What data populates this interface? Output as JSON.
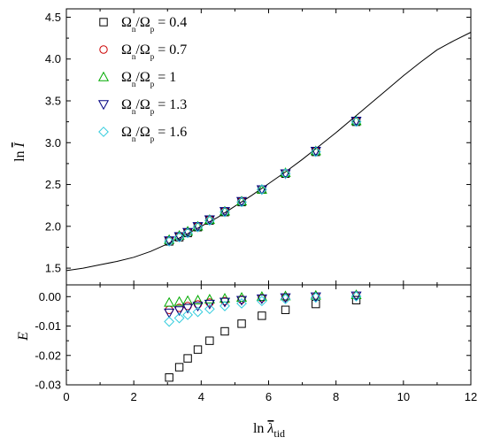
{
  "chart_data": [
    {
      "type": "scatter",
      "panel": "top",
      "ylabel": "ln Ī",
      "ylabel_main": "ln ",
      "ylabel_sym": "I",
      "xlim": [
        0,
        12
      ],
      "ylim": [
        1.3,
        4.6
      ],
      "x_ticks": [
        0,
        2,
        4,
        6,
        8,
        10,
        12
      ],
      "y_ticks": [
        1.5,
        2.0,
        2.5,
        3.0,
        3.5,
        4.0,
        4.5
      ],
      "y_tick_labels": [
        "1.5",
        "2.0",
        "2.5",
        "3.0",
        "3.5",
        "4.0",
        "4.5"
      ],
      "legend_position": "top-left",
      "grid": false,
      "fit_curve": {
        "x": [
          0,
          0.5,
          1,
          1.5,
          2,
          2.5,
          3,
          3.5,
          4,
          4.5,
          5,
          5.5,
          6,
          6.5,
          7,
          7.5,
          8,
          8.5,
          9,
          9.5,
          10,
          10.5,
          11,
          11.5,
          12
        ],
        "y": [
          1.47,
          1.5,
          1.54,
          1.58,
          1.63,
          1.7,
          1.79,
          1.89,
          2.0,
          2.11,
          2.24,
          2.37,
          2.51,
          2.65,
          2.8,
          2.96,
          3.12,
          3.29,
          3.46,
          3.63,
          3.8,
          3.96,
          4.11,
          4.22,
          4.32
        ]
      },
      "x": [
        3.05,
        3.35,
        3.6,
        3.9,
        4.25,
        4.7,
        5.2,
        5.8,
        6.5,
        7.4,
        8.6
      ],
      "series": [
        {
          "name": "Ωn/Ωp = 0.4",
          "label": [
            "Ω",
            "n",
            "/Ω",
            "p",
            " = 0.4"
          ],
          "marker": "square",
          "color": "#000000",
          "values": [
            1.82,
            1.87,
            1.92,
            1.99,
            2.07,
            2.17,
            2.29,
            2.44,
            2.63,
            2.89,
            3.25
          ]
        },
        {
          "name": "Ωn/Ωp = 0.7",
          "label": [
            "Ω",
            "n",
            "/Ω",
            "p",
            " = 0.7"
          ],
          "marker": "circle",
          "color": "#cc0000",
          "values": [
            1.83,
            1.88,
            1.93,
            2.0,
            2.08,
            2.18,
            2.3,
            2.44,
            2.63,
            2.9,
            3.26
          ]
        },
        {
          "name": "Ωn/Ωp = 1",
          "label": [
            "Ω",
            "n",
            "/Ω",
            "p",
            " = 1"
          ],
          "marker": "triangle-up",
          "color": "#00aa00",
          "values": [
            1.84,
            1.89,
            1.94,
            2.0,
            2.08,
            2.18,
            2.3,
            2.44,
            2.64,
            2.9,
            3.26
          ]
        },
        {
          "name": "Ωn/Ωp = 1.3",
          "label": [
            "Ω",
            "n",
            "/Ω",
            "p",
            " = 1.3"
          ],
          "marker": "triangle-down",
          "color": "#000080",
          "values": [
            1.83,
            1.88,
            1.93,
            2.0,
            2.08,
            2.18,
            2.3,
            2.44,
            2.63,
            2.9,
            3.26
          ]
        },
        {
          "name": "Ωn/Ωp = 1.6",
          "label": [
            "Ω",
            "n",
            "/Ω",
            "p",
            " = 1.6"
          ],
          "marker": "diamond",
          "color": "#33ccdd",
          "values": [
            1.82,
            1.87,
            1.92,
            1.99,
            2.07,
            2.17,
            2.29,
            2.44,
            2.63,
            2.89,
            3.25
          ]
        }
      ]
    },
    {
      "type": "scatter",
      "panel": "bottom",
      "xlabel": "ln λ̄tid",
      "xlabel_main": "ln ",
      "xlabel_sym": "λ",
      "xlabel_sub": "tid",
      "ylabel": "E",
      "xlim": [
        0,
        12
      ],
      "ylim": [
        -0.03,
        0.004
      ],
      "x_ticks": [
        0,
        2,
        4,
        6,
        8,
        10,
        12
      ],
      "x_tick_labels": [
        "0",
        "2",
        "4",
        "6",
        "8",
        "10",
        "12"
      ],
      "y_ticks": [
        -0.03,
        -0.02,
        -0.01,
        0.0
      ],
      "y_tick_labels": [
        "-0.03",
        "-0.02",
        "-0.01",
        "0.00"
      ],
      "grid": false,
      "x": [
        3.05,
        3.35,
        3.6,
        3.9,
        4.25,
        4.7,
        5.2,
        5.8,
        6.5,
        7.4,
        8.6
      ],
      "series": [
        {
          "name": "Ωn/Ωp = 0.4",
          "marker": "square",
          "color": "#000000",
          "values": [
            -0.0275,
            -0.024,
            -0.021,
            -0.018,
            -0.015,
            -0.0118,
            -0.0092,
            -0.0065,
            -0.0045,
            -0.0025,
            -0.0012
          ]
        },
        {
          "name": "Ωn/Ωp = 0.7",
          "marker": "circle",
          "color": "#cc0000",
          "values": [
            -0.0045,
            -0.0038,
            -0.0032,
            -0.0026,
            -0.002,
            -0.0015,
            -0.001,
            -0.0005,
            -0.0002,
            0.0,
            0.0003
          ]
        },
        {
          "name": "Ωn/Ωp = 1",
          "marker": "triangle-up",
          "color": "#00aa00",
          "values": [
            -0.002,
            -0.0017,
            -0.0014,
            -0.0012,
            -0.0009,
            -0.0006,
            -0.0003,
            0.0,
            0.0002,
            0.0004,
            0.0006
          ]
        },
        {
          "name": "Ωn/Ωp = 1.3",
          "marker": "triangle-down",
          "color": "#000080",
          "values": [
            -0.0055,
            -0.0047,
            -0.0039,
            -0.0032,
            -0.0025,
            -0.0018,
            -0.0012,
            -0.0007,
            -0.0003,
            0.0,
            0.0003
          ]
        },
        {
          "name": "Ωn/Ωp = 1.6",
          "marker": "diamond",
          "color": "#33ccdd",
          "values": [
            -0.0085,
            -0.0073,
            -0.0062,
            -0.0052,
            -0.0042,
            -0.0032,
            -0.0023,
            -0.0015,
            -0.0008,
            -0.0003,
            0.0001
          ]
        }
      ]
    }
  ]
}
